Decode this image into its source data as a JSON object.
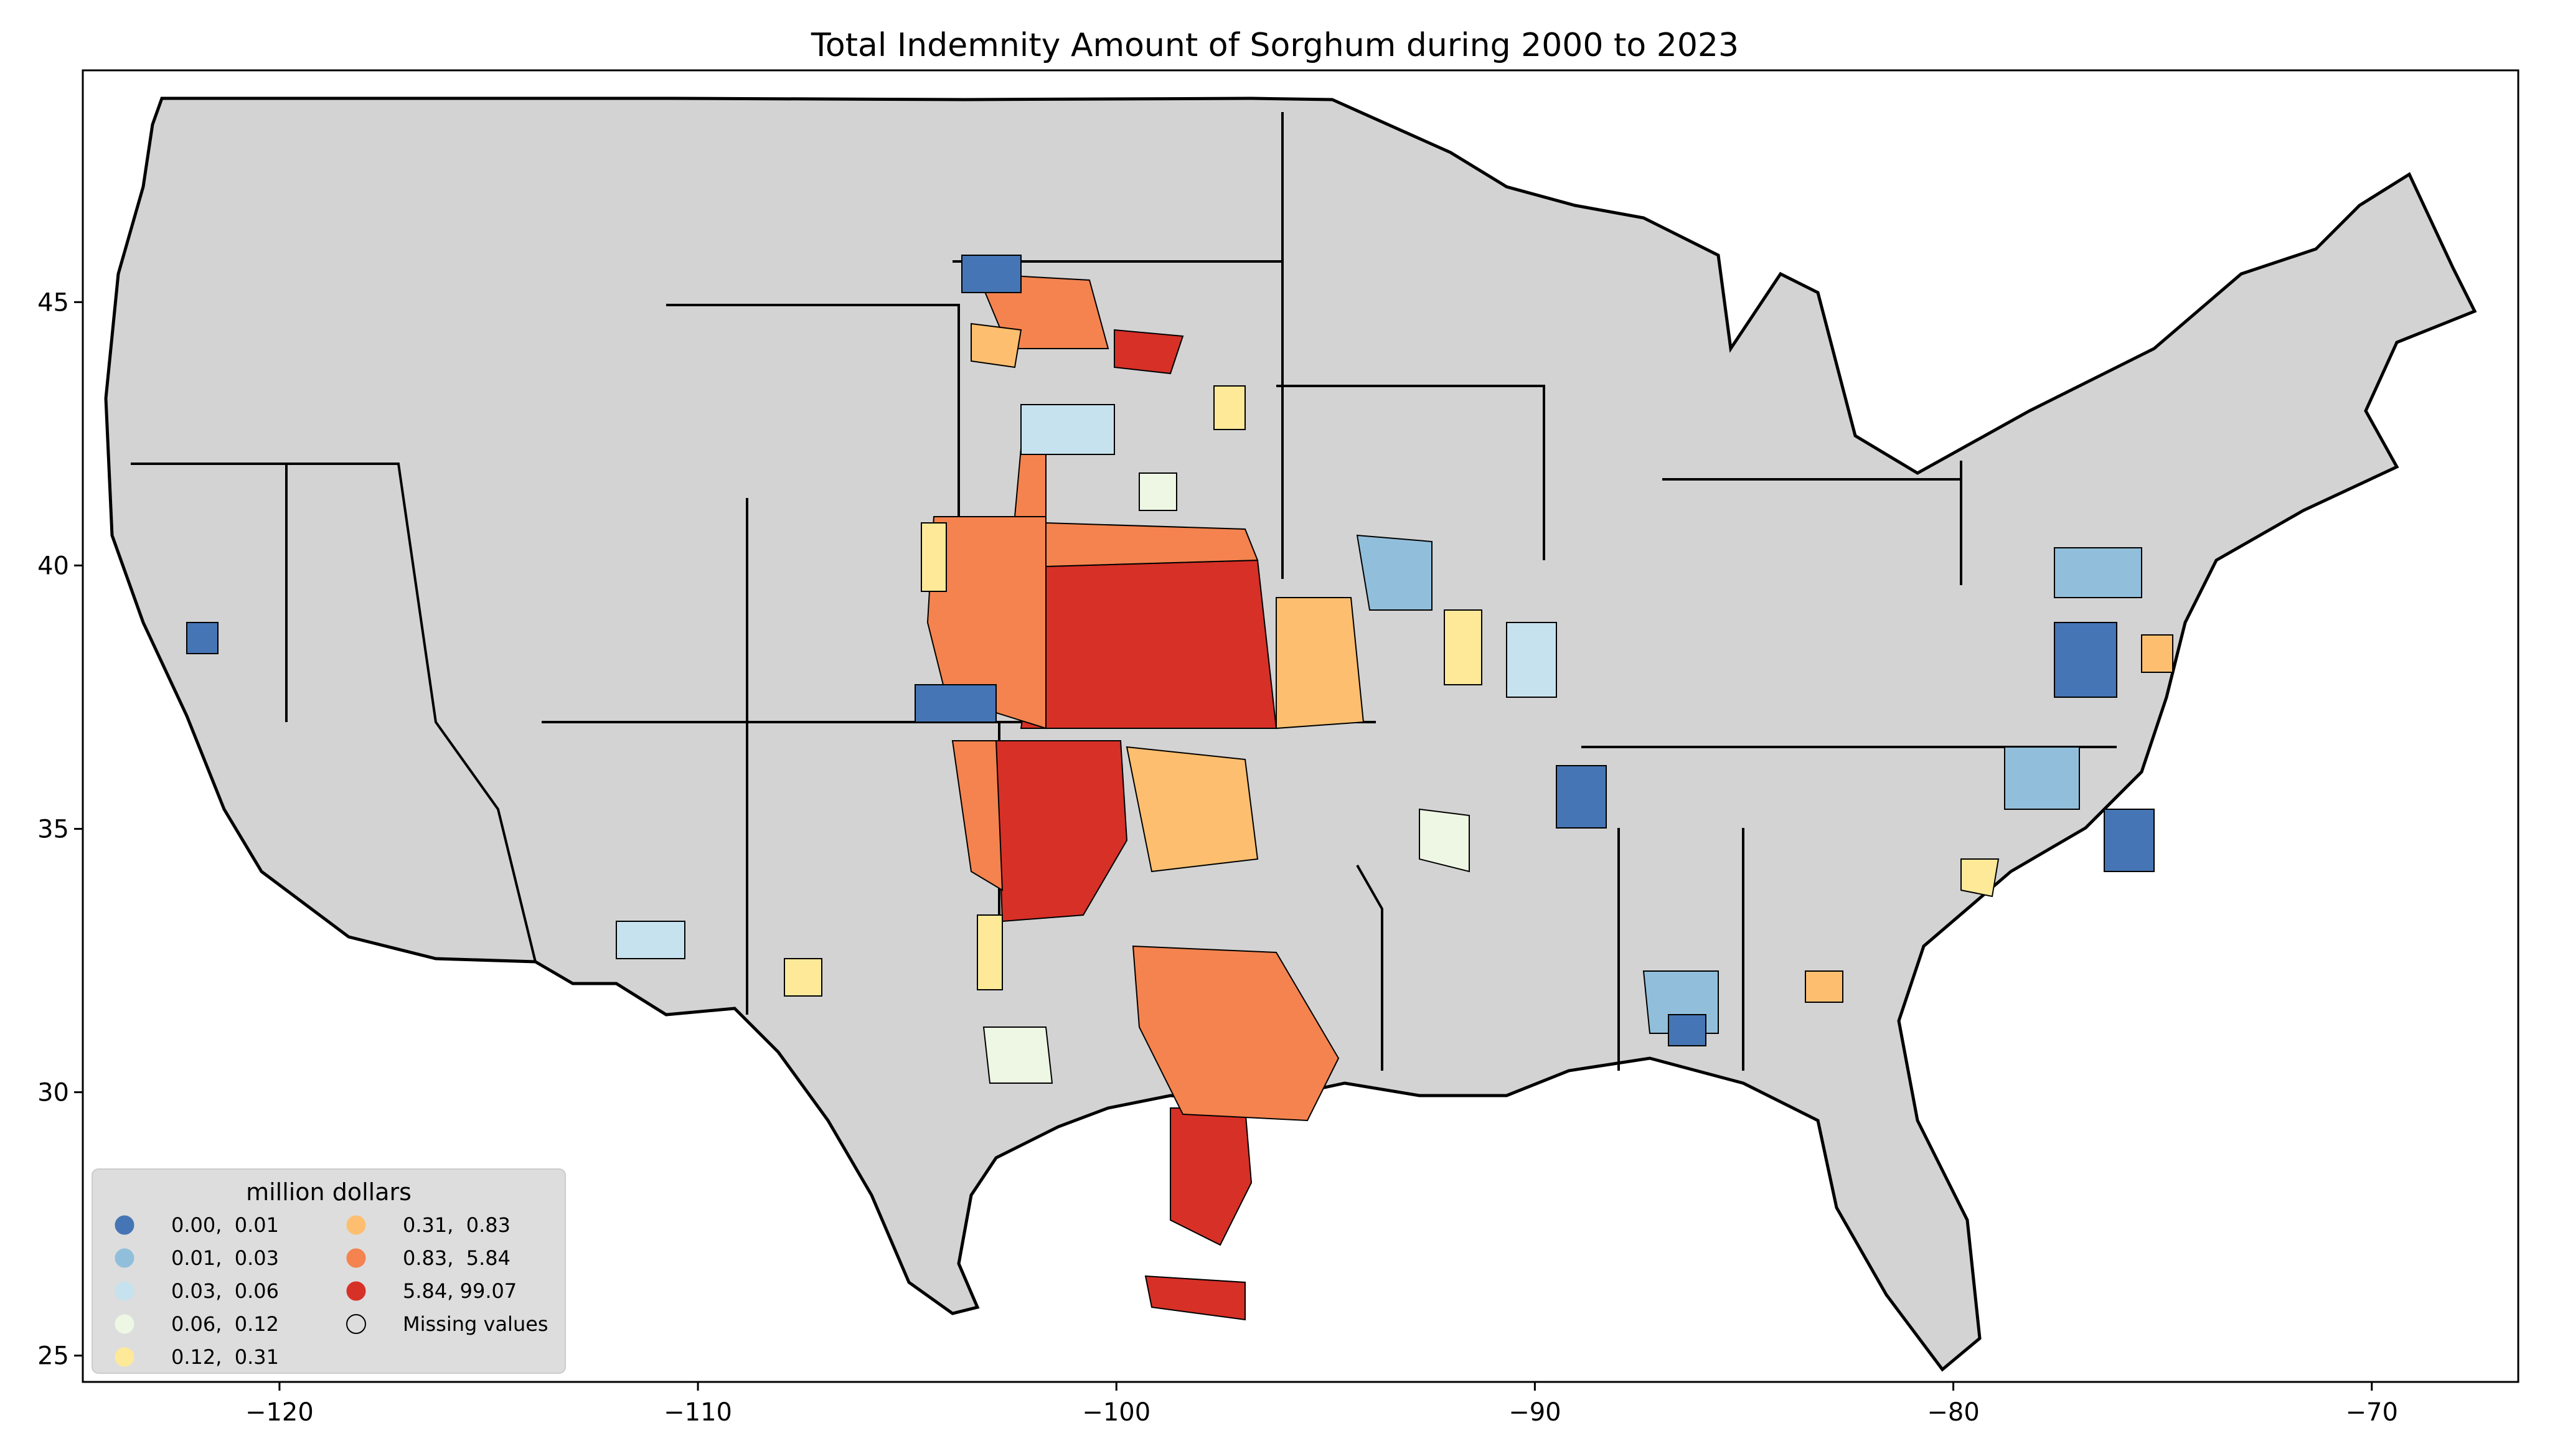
{
  "title": "Total Indemnity Amount of Sorghum during 2000 to 2023",
  "x_ticks": [
    {
      "value": -120,
      "label": "−120"
    },
    {
      "value": -110,
      "label": "−110"
    },
    {
      "value": -100,
      "label": "−100"
    },
    {
      "value": -90,
      "label": "−90"
    },
    {
      "value": -80,
      "label": "−80"
    },
    {
      "value": -70,
      "label": "−70"
    }
  ],
  "y_ticks": [
    {
      "value": 25,
      "label": "25"
    },
    {
      "value": 30,
      "label": "30"
    },
    {
      "value": 35,
      "label": "35"
    },
    {
      "value": 40,
      "label": "40"
    },
    {
      "value": 45,
      "label": "45"
    }
  ],
  "extent": {
    "lon": [
      -124.7,
      -66.5
    ],
    "lat": [
      24.5,
      49.4
    ]
  },
  "legend": {
    "title": "million dollars",
    "placement": "lower-left",
    "items": [
      {
        "label": "0.00,  0.01",
        "color": "#4575b4"
      },
      {
        "label": "0.01,  0.03",
        "color": "#91bfdb"
      },
      {
        "label": "0.03,  0.06",
        "color": "#c6e2ee"
      },
      {
        "label": "0.06,  0.12",
        "color": "#eef7e4"
      },
      {
        "label": "0.12,  0.31",
        "color": "#fee999"
      },
      {
        "label": "0.31,  0.83",
        "color": "#fdbf6f"
      },
      {
        "label": "0.83,  5.84",
        "color": "#f4834f"
      },
      {
        "label": "5.84, 99.07",
        "color": "#d73027"
      },
      {
        "label": "Missing values",
        "color": "#d3d3d3"
      }
    ]
  },
  "colors": {
    "missing": "#d3d3d3",
    "border": "#000000"
  }
}
